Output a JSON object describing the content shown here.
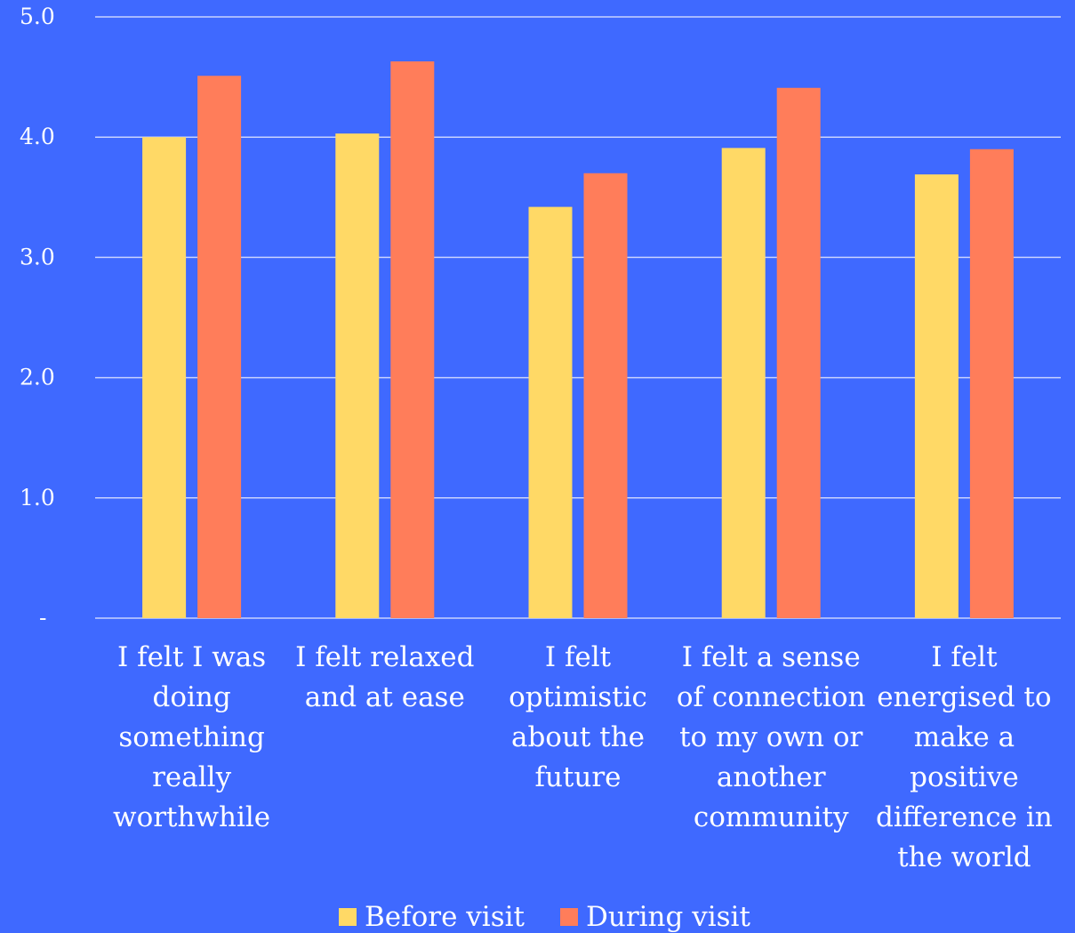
{
  "colors": {
    "background": "#3f69ff",
    "gridline": "#c8d2ff",
    "text": "#ffffff"
  },
  "chart_data": {
    "type": "bar",
    "categories": [
      [
        "I felt I was",
        "doing",
        "something",
        "really",
        "worthwhile"
      ],
      [
        "I felt relaxed",
        "and at ease"
      ],
      [
        "I felt",
        "optimistic",
        "about the",
        "future"
      ],
      [
        "I felt a sense",
        "of connection",
        "to my own or",
        "another",
        "community"
      ],
      [
        "I felt",
        "energised to",
        "make a",
        "positive",
        "difference in",
        "the world"
      ]
    ],
    "series": [
      {
        "name": "Before visit",
        "color": "#ffd966",
        "values": [
          4.0,
          4.03,
          3.42,
          3.91,
          3.69
        ]
      },
      {
        "name": "During visit",
        "color": "#ff7d5a",
        "values": [
          4.51,
          4.63,
          3.7,
          4.41,
          3.9
        ]
      }
    ],
    "yticks": [
      "-",
      "1.0",
      "2.0",
      "3.0",
      "4.0",
      "5.0"
    ],
    "ylim": [
      0,
      5
    ],
    "grid": true,
    "legend": "bottom"
  }
}
